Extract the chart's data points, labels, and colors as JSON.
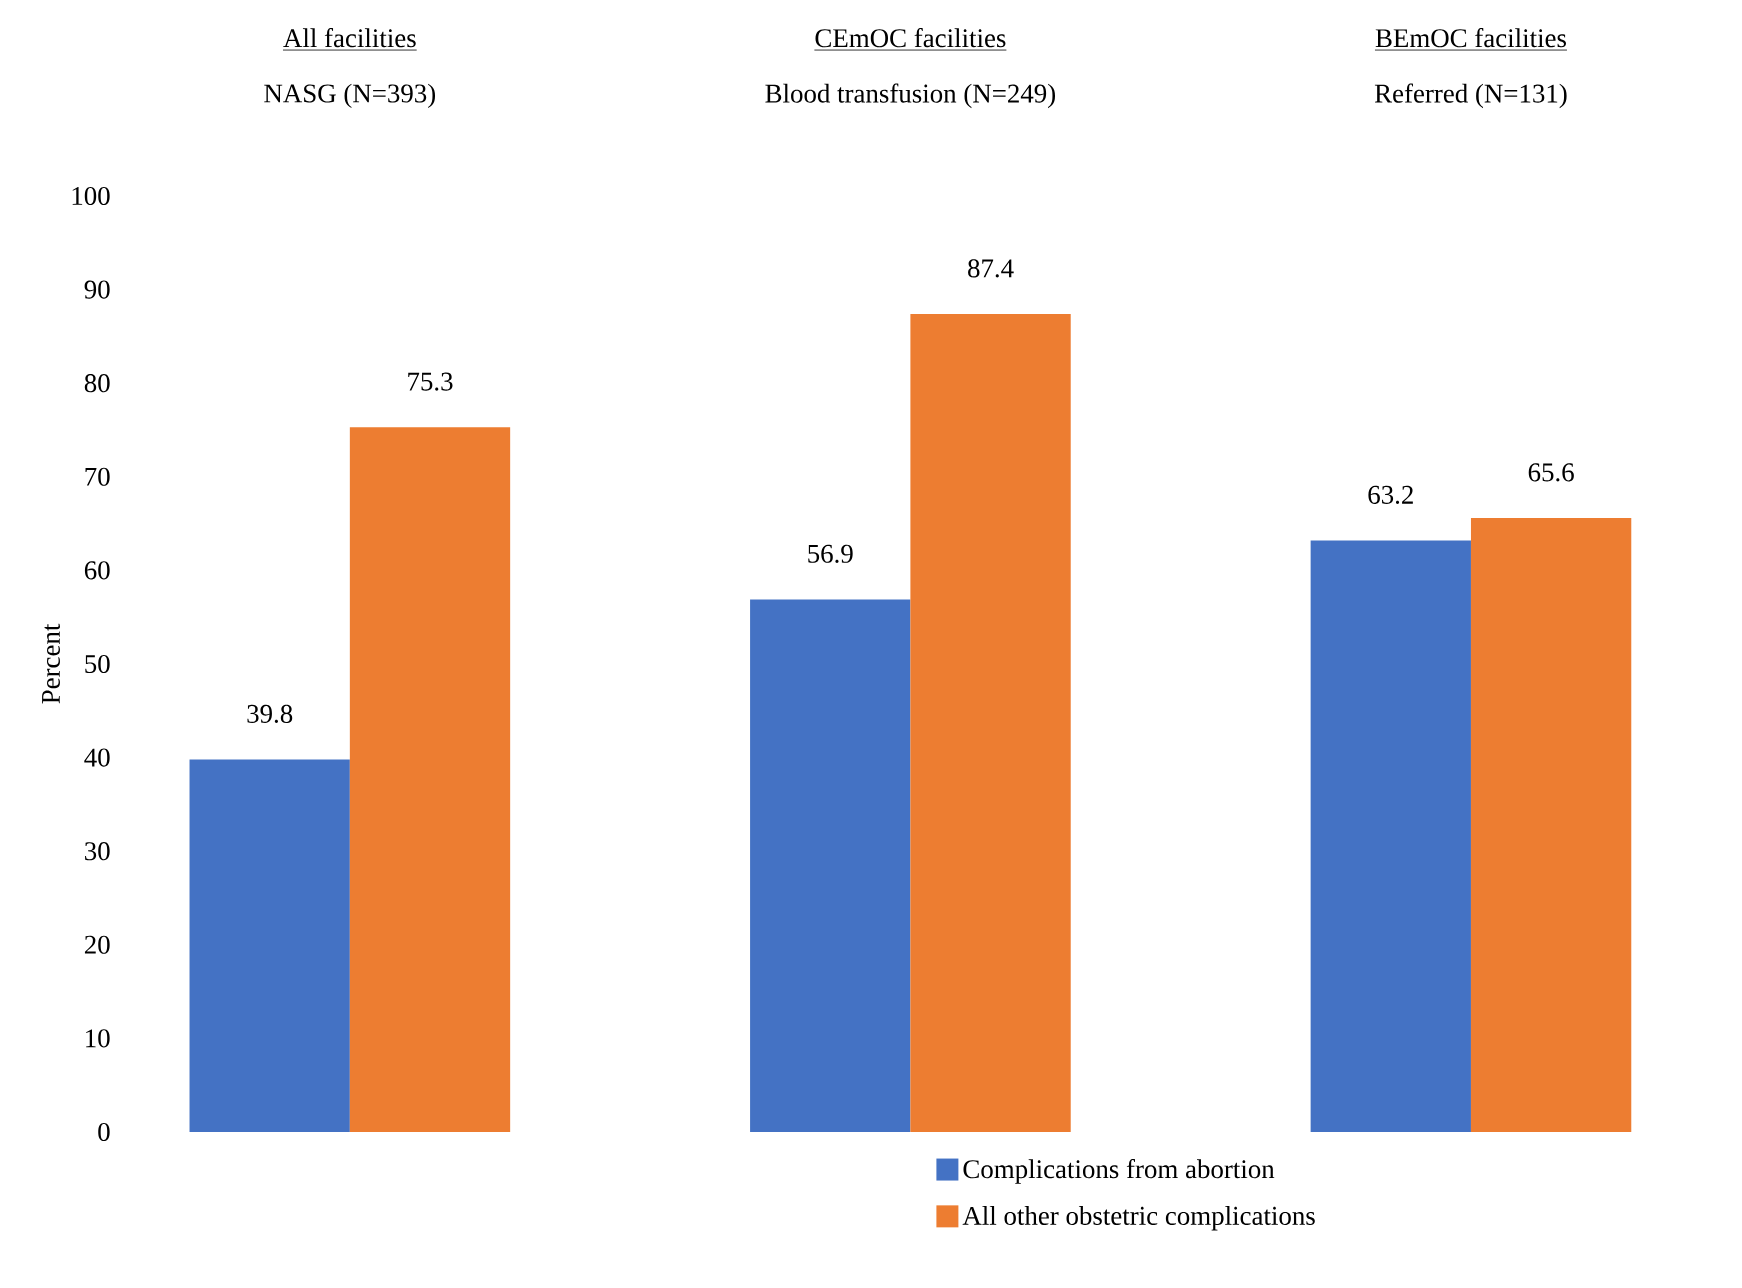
{
  "chart_data": {
    "type": "bar",
    "categories": [
      "All facilities",
      "CEmOC facilities",
      "BEmOC facilities"
    ],
    "annotations": [
      "NASG (N=393)",
      "Blood transfusion (N=249)",
      "Referred (N=131)"
    ],
    "ylabel": "Percent",
    "ylim": [
      0,
      100
    ],
    "yticks": [
      0,
      10,
      20,
      30,
      40,
      50,
      60,
      70,
      80,
      90,
      100
    ],
    "series": [
      {
        "name": "Complications from abortion",
        "color": "#4472c4",
        "values": [
          39.8,
          56.9,
          63.2
        ]
      },
      {
        "name": "All other obstetric complications",
        "color": "#ed7d31",
        "values": [
          75.3,
          87.4,
          65.6
        ]
      }
    ],
    "data_labels": true,
    "grid": false,
    "legend": "bottom right"
  }
}
